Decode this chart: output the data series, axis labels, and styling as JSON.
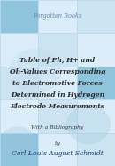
{
  "background_color": "#cde3f0",
  "title_line1": "Table of Ph, H+ and",
  "title_line2": "Oh-Values Corresponding",
  "title_line3": "to Electromotive Forces",
  "title_line4": "Determined in Hydrogen",
  "title_line5": "Electrode Measurements",
  "subtitle": "With a Bibliography",
  "by_text": "by",
  "author": "Carl Louis August Schmidt",
  "publisher": "Forgotten Books",
  "title_color": "#2a2a2a",
  "subtitle_color": "#333333",
  "author_color": "#1a3a6e",
  "publisher_color": "#6688aa",
  "title_fontsize": 5.5,
  "subtitle_fontsize": 4.2,
  "author_fontsize": 5.5,
  "publisher_fontsize": 4.8,
  "sq_light": "#daedf8",
  "sq_mid": "#a8cfe0",
  "sq_dark": "#7ab5d8",
  "grid_cols": 3,
  "grid_rows": 5
}
